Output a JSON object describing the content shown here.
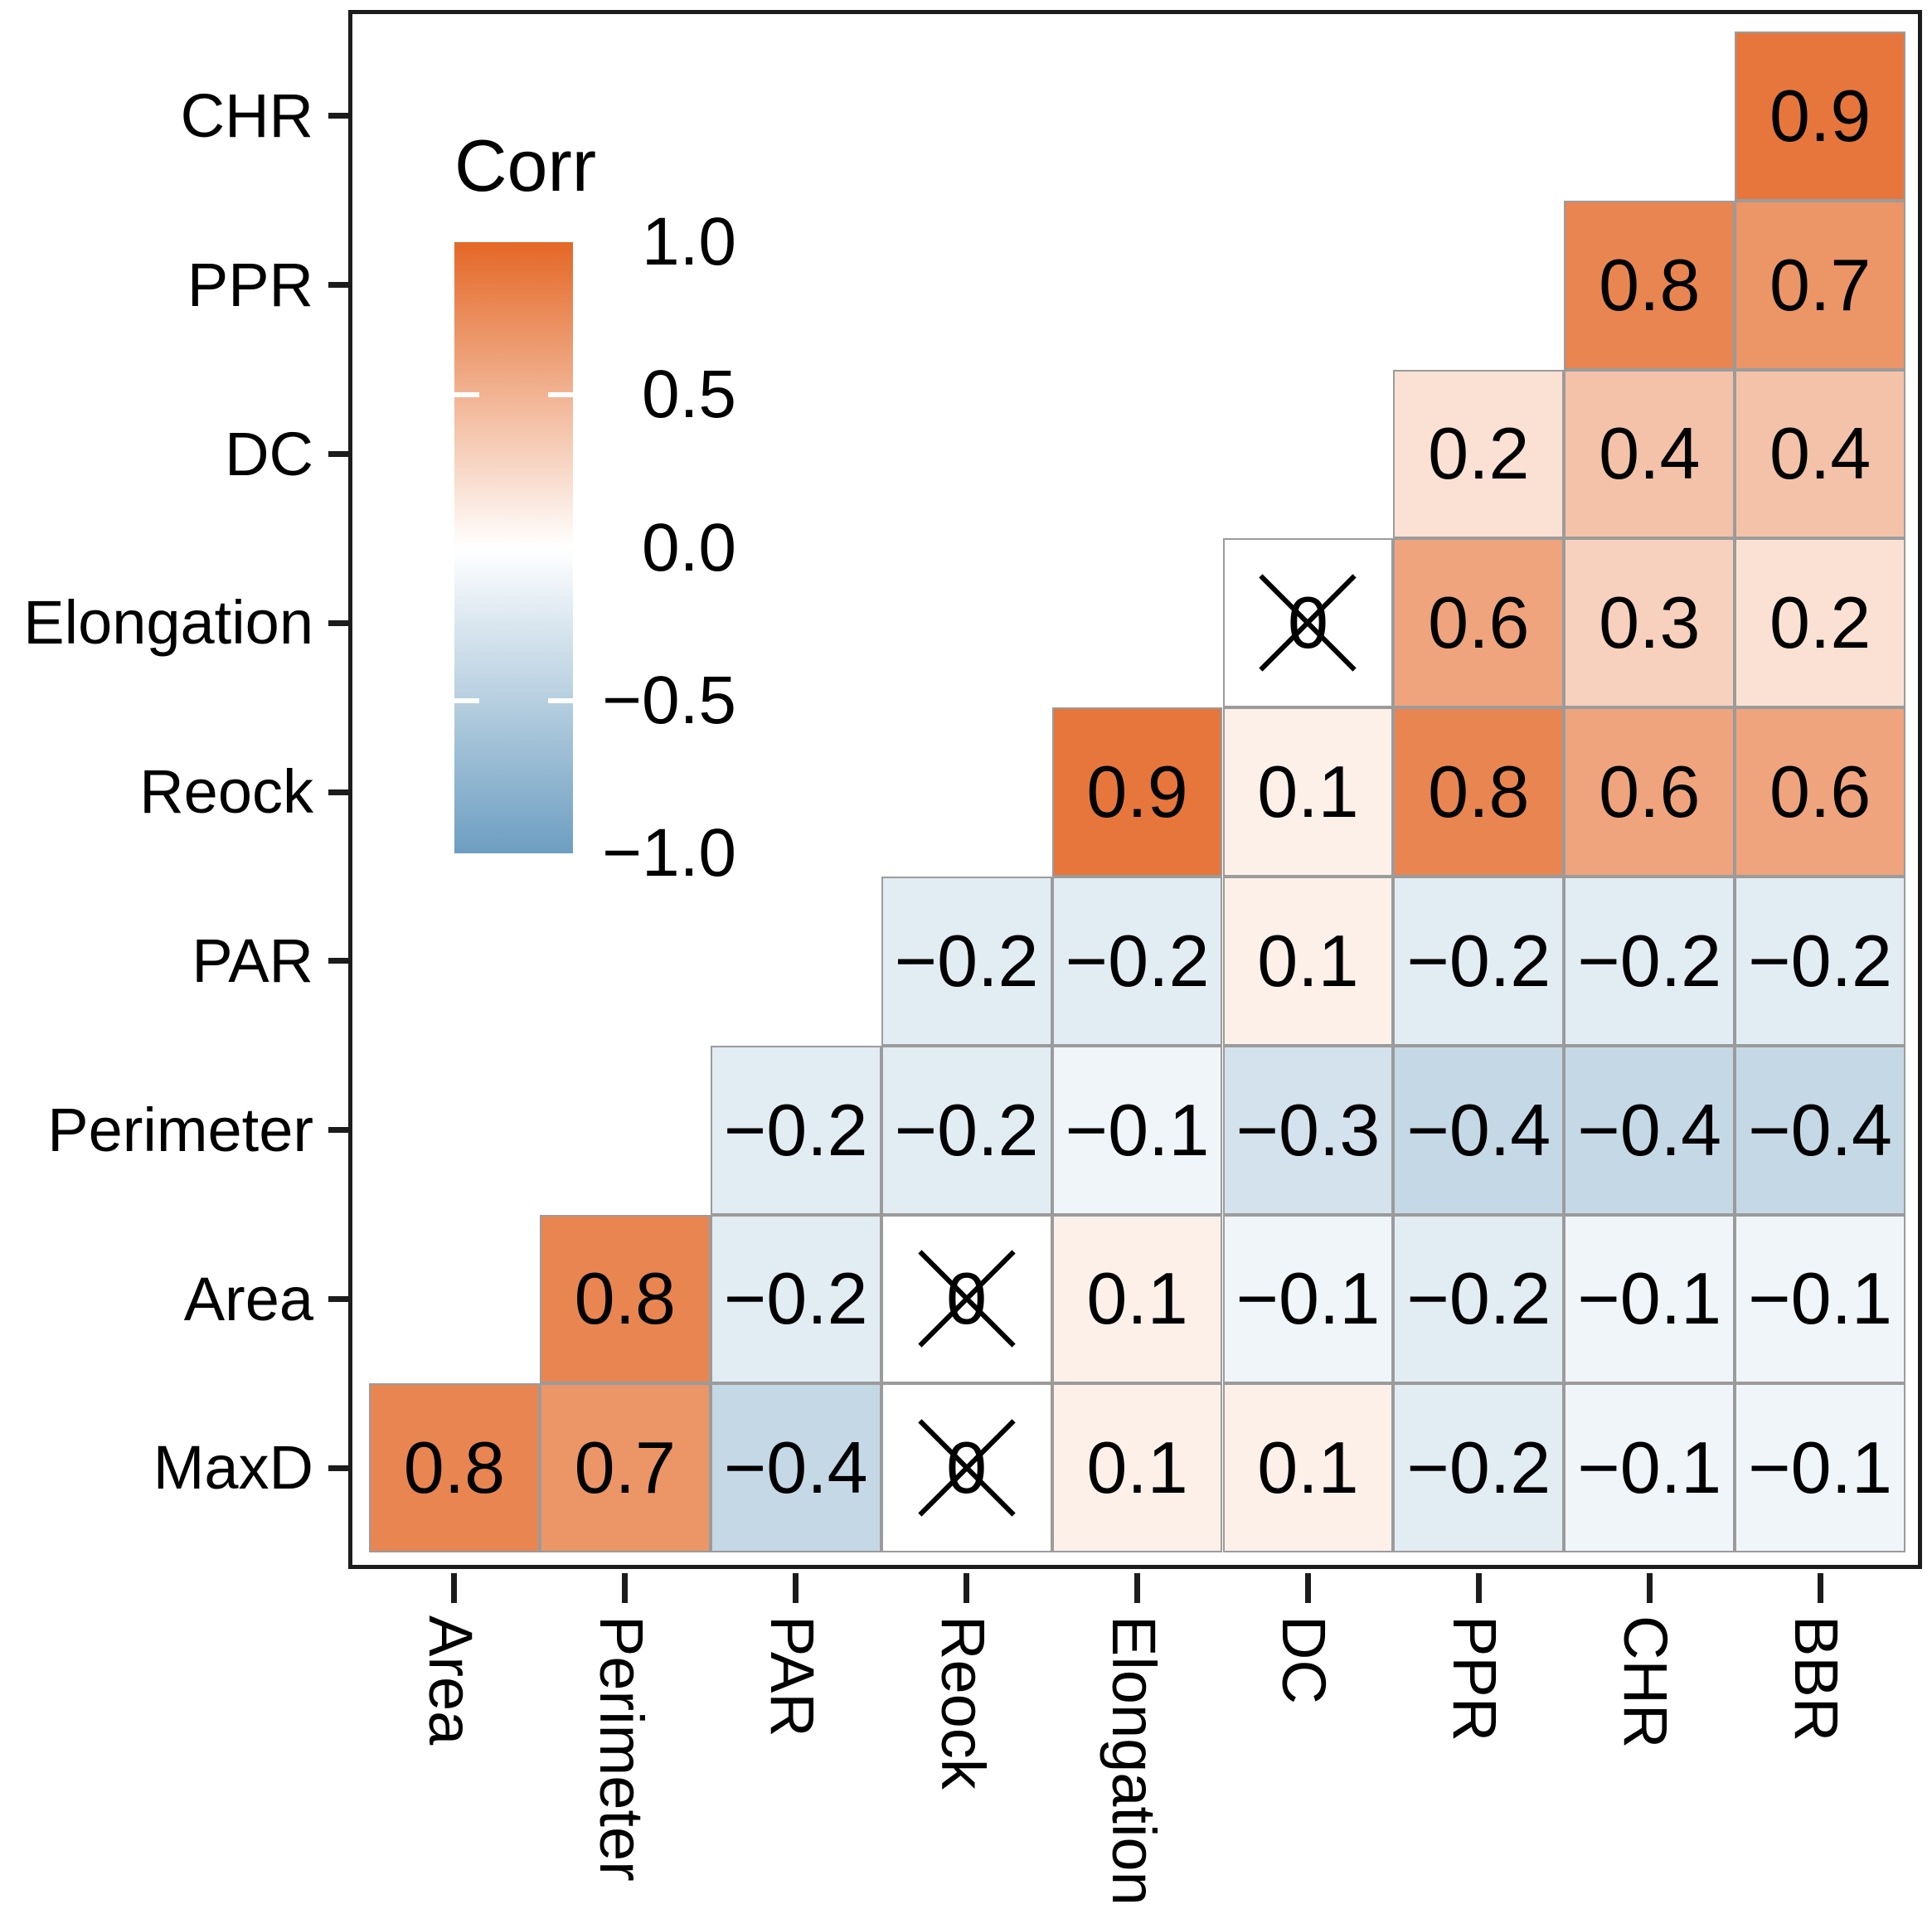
{
  "chart_data": {
    "type": "heatmap",
    "title": "",
    "legend": {
      "title": "Corr",
      "tick_labels": [
        "1.0",
        "0.5",
        "0.0",
        "−0.5",
        "−1.0"
      ],
      "range": [
        -1,
        1
      ],
      "position": "inside-top-left"
    },
    "palette": {
      "high": "#E46726",
      "mid": "#FFFFFF",
      "low": "#6D9EC1"
    },
    "grid_line_color": "#9B9B9B",
    "x_categories": [
      "Area",
      "Perimeter",
      "PAR",
      "Reock",
      "Elongation",
      "DC",
      "PPR",
      "CHR",
      "BBR"
    ],
    "y_categories": [
      "CHR",
      "PPR",
      "DC",
      "Elongation",
      "Reock",
      "PAR",
      "Perimeter",
      "Area",
      "MaxD"
    ],
    "crossed_note": "cells marked crossed show a 0 with an X overlay",
    "rows": [
      {
        "y": "CHR",
        "cells": [
          {
            "x": "BBR",
            "value": 0.9
          }
        ]
      },
      {
        "y": "PPR",
        "cells": [
          {
            "x": "CHR",
            "value": 0.8
          },
          {
            "x": "BBR",
            "value": 0.7
          }
        ]
      },
      {
        "y": "DC",
        "cells": [
          {
            "x": "PPR",
            "value": 0.2
          },
          {
            "x": "CHR",
            "value": 0.4
          },
          {
            "x": "BBR",
            "value": 0.4
          }
        ]
      },
      {
        "y": "Elongation",
        "cells": [
          {
            "x": "DC",
            "value": 0,
            "crossed": true
          },
          {
            "x": "PPR",
            "value": 0.6
          },
          {
            "x": "CHR",
            "value": 0.3
          },
          {
            "x": "BBR",
            "value": 0.2
          }
        ]
      },
      {
        "y": "Reock",
        "cells": [
          {
            "x": "Elongation",
            "value": 0.9
          },
          {
            "x": "DC",
            "value": 0.1
          },
          {
            "x": "PPR",
            "value": 0.8
          },
          {
            "x": "CHR",
            "value": 0.6
          },
          {
            "x": "BBR",
            "value": 0.6
          }
        ]
      },
      {
        "y": "PAR",
        "cells": [
          {
            "x": "Reock",
            "value": -0.2
          },
          {
            "x": "Elongation",
            "value": -0.2
          },
          {
            "x": "DC",
            "value": 0.1
          },
          {
            "x": "PPR",
            "value": -0.2
          },
          {
            "x": "CHR",
            "value": -0.2
          },
          {
            "x": "BBR",
            "value": -0.2
          }
        ]
      },
      {
        "y": "Perimeter",
        "cells": [
          {
            "x": "PAR",
            "value": -0.2
          },
          {
            "x": "Reock",
            "value": -0.2
          },
          {
            "x": "Elongation",
            "value": -0.1
          },
          {
            "x": "DC",
            "value": -0.3
          },
          {
            "x": "PPR",
            "value": -0.4
          },
          {
            "x": "CHR",
            "value": -0.4
          },
          {
            "x": "BBR",
            "value": -0.4
          }
        ]
      },
      {
        "y": "Area",
        "cells": [
          {
            "x": "Perimeter",
            "value": 0.8
          },
          {
            "x": "PAR",
            "value": -0.2
          },
          {
            "x": "Reock",
            "value": 0,
            "crossed": true
          },
          {
            "x": "Elongation",
            "value": 0.1
          },
          {
            "x": "DC",
            "value": -0.1
          },
          {
            "x": "PPR",
            "value": -0.2
          },
          {
            "x": "CHR",
            "value": -0.1
          },
          {
            "x": "BBR",
            "value": -0.1
          }
        ]
      },
      {
        "y": "MaxD",
        "cells": [
          {
            "x": "Area",
            "value": 0.8
          },
          {
            "x": "Perimeter",
            "value": 0.7
          },
          {
            "x": "PAR",
            "value": -0.4
          },
          {
            "x": "Reock",
            "value": 0,
            "crossed": true
          },
          {
            "x": "Elongation",
            "value": 0.1
          },
          {
            "x": "DC",
            "value": 0.1
          },
          {
            "x": "PPR",
            "value": -0.2
          },
          {
            "x": "CHR",
            "value": -0.1
          },
          {
            "x": "BBR",
            "value": -0.1
          }
        ]
      }
    ]
  }
}
